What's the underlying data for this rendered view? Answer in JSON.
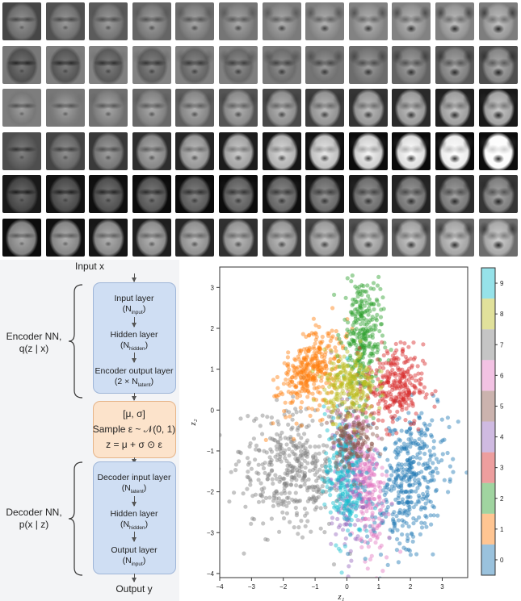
{
  "face_grid": {
    "rows": 6,
    "cols": 12,
    "description_rows": [
      "woman-to-dog",
      "boy-to-dog",
      "woman-to-dog",
      "woman-to-spotted-dog",
      "man-to-dog",
      "woman-to-husky"
    ]
  },
  "diagram": {
    "input_label": "Input x",
    "output_label": "Output y",
    "encoder": {
      "side_label_line1": "Encoder NN,",
      "side_label_line2": "q(z | x)",
      "input_layer": "Input layer",
      "input_sub": "input",
      "hidden_layer": "Hidden layer",
      "hidden_sub": "hidden",
      "output_layer": "Encoder output layer",
      "output_prefix": "(2 × N",
      "output_sub": "latent",
      "output_suffix": ")"
    },
    "sampling": {
      "line1": "[μ, σ]",
      "line2": "Sample ε ~ 𝒩(0, 1)",
      "line3": "z = μ + σ ⊙ ε"
    },
    "decoder": {
      "side_label_line1": "Decoder NN,",
      "side_label_line2": "p(x | z)",
      "input_layer": "Decoder input layer",
      "input_sub": "latent",
      "hidden_layer": "Hidden layer",
      "hidden_sub": "hidden",
      "output_layer": "Output layer",
      "output_sub": "input"
    },
    "N": "N"
  },
  "chart_data": {
    "type": "scatter",
    "xlabel": "z₁",
    "ylabel": "z₂",
    "xlim": [
      -4,
      3.8
    ],
    "ylim": [
      -4.1,
      3.5
    ],
    "xticks": [
      "−4",
      "−3",
      "−2",
      "−1",
      "0",
      "1",
      "2",
      "3"
    ],
    "yticks": [
      "−4",
      "−3",
      "−2",
      "−1",
      "0",
      "1",
      "2",
      "3"
    ],
    "grid": false,
    "colorbar_ticks": [
      "0",
      "1",
      "2",
      "3",
      "4",
      "5",
      "6",
      "7",
      "8",
      "9"
    ],
    "colors": [
      "#1f77b4",
      "#ff7f0e",
      "#2ca02c",
      "#d62728",
      "#9467bd",
      "#8c564b",
      "#e377c2",
      "#7f7f7f",
      "#bcbd22",
      "#17becf"
    ],
    "clusters": [
      {
        "label": "0",
        "center": [
          1.9,
          -1.7
        ],
        "spread": [
          0.55,
          0.9
        ],
        "rot": -0.3,
        "n": 420
      },
      {
        "label": "1",
        "center": [
          -1.1,
          1.0
        ],
        "spread": [
          0.6,
          0.35
        ],
        "rot": 0.9,
        "n": 330
      },
      {
        "label": "2",
        "center": [
          0.5,
          1.8
        ],
        "spread": [
          0.3,
          0.8
        ],
        "rot": 0,
        "n": 300
      },
      {
        "label": "3",
        "center": [
          1.5,
          0.6
        ],
        "spread": [
          0.45,
          0.5
        ],
        "rot": 0,
        "n": 280
      },
      {
        "label": "4",
        "center": [
          0.0,
          -1.8
        ],
        "spread": [
          0.25,
          0.9
        ],
        "rot": 0,
        "n": 160
      },
      {
        "label": "5",
        "center": [
          0.2,
          -0.6
        ],
        "spread": [
          0.35,
          0.4
        ],
        "rot": 0,
        "n": 160
      },
      {
        "label": "6",
        "center": [
          0.6,
          -1.7
        ],
        "spread": [
          0.25,
          0.9
        ],
        "rot": 0.2,
        "n": 260
      },
      {
        "label": "7",
        "center": [
          -1.7,
          -1.5
        ],
        "spread": [
          0.85,
          0.7
        ],
        "rot": -0.3,
        "n": 420
      },
      {
        "label": "8",
        "center": [
          0.1,
          0.6
        ],
        "spread": [
          0.4,
          0.4
        ],
        "rot": 0,
        "n": 240
      },
      {
        "label": "9",
        "center": [
          -0.1,
          -1.6
        ],
        "spread": [
          0.3,
          0.8
        ],
        "rot": 0,
        "n": 240
      }
    ]
  }
}
